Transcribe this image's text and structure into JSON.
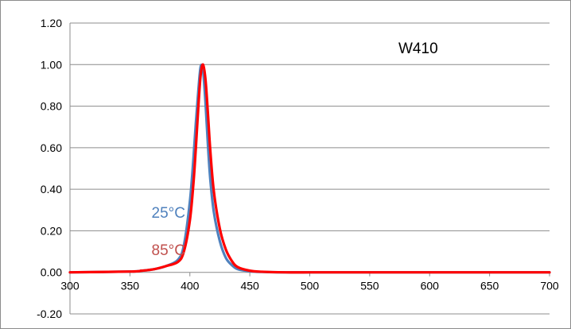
{
  "chart_data": {
    "type": "line",
    "title": "W410",
    "xlabel": "",
    "ylabel": "",
    "xlim": [
      300,
      700
    ],
    "ylim": [
      -0.2,
      1.2
    ],
    "x_ticks": [
      "300",
      "350",
      "400",
      "450",
      "500",
      "550",
      "600",
      "650",
      "700"
    ],
    "y_ticks": [
      "1.20",
      "1.00",
      "0.80",
      "0.60",
      "0.40",
      "0.20",
      "0.00",
      "-0.20"
    ],
    "grid": "horizontal",
    "annotations": [
      {
        "text": "25°C",
        "color": "#4f81bd",
        "x": 368,
        "y": 0.29
      },
      {
        "text": "85°C",
        "color": "#c0504d",
        "x": 368,
        "y": 0.11
      }
    ],
    "series": [
      {
        "color": "#4f81bd",
        "x": [
          300,
          350,
          360,
          370,
          380,
          390,
          395,
          400,
          403,
          405,
          407,
          409,
          411,
          413,
          415,
          417,
          420,
          425,
          430,
          435,
          440,
          450,
          460,
          480,
          500,
          600,
          700
        ],
        "y": [
          0,
          0.004,
          0.008,
          0.015,
          0.03,
          0.06,
          0.13,
          0.34,
          0.55,
          0.72,
          0.87,
          0.99,
          0.97,
          0.82,
          0.62,
          0.45,
          0.29,
          0.15,
          0.07,
          0.035,
          0.015,
          0.005,
          0.002,
          0,
          0,
          0,
          0
        ]
      },
      {
        "color": "#ff0000",
        "x": [
          300,
          350,
          360,
          370,
          380,
          390,
          395,
          400,
          403,
          405,
          407,
          409,
          411,
          413,
          415,
          417,
          420,
          425,
          430,
          435,
          440,
          450,
          460,
          480,
          500,
          600,
          700
        ],
        "y": [
          0,
          0.004,
          0.008,
          0.015,
          0.03,
          0.05,
          0.1,
          0.25,
          0.43,
          0.6,
          0.79,
          0.95,
          1.0,
          0.93,
          0.77,
          0.59,
          0.39,
          0.21,
          0.11,
          0.055,
          0.025,
          0.008,
          0.003,
          0,
          0,
          0,
          0
        ]
      }
    ]
  }
}
